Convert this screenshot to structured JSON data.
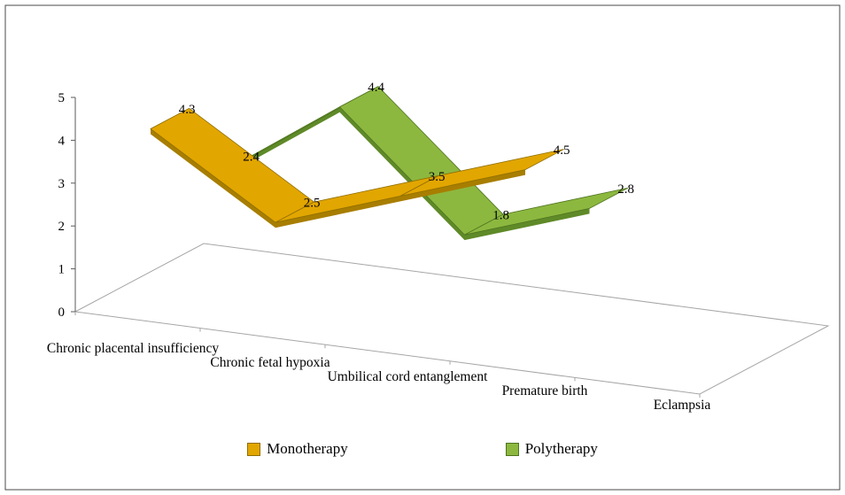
{
  "frame": {
    "background": "#ffffff",
    "border_color": "#4a4a4a"
  },
  "chart_data": {
    "type": "line",
    "style": "3d-ribbon",
    "title": "",
    "xlabel": "",
    "ylabel": "",
    "categories": [
      "Chronic placental insufficiency",
      "Chronic fetal hypoxia",
      "Umbilical cord entanglement",
      "Premature birth",
      "Eclampsia"
    ],
    "series": [
      {
        "name": "Monotherapy",
        "color": "#E2A600",
        "edge_color": "#8F6E00",
        "dark_color": "#A87E00",
        "values": [
          4.3,
          2.5,
          3.5,
          4.5,
          null
        ]
      },
      {
        "name": "Polytherapy",
        "color": "#8DB83F",
        "edge_color": "#4E741F",
        "dark_color": "#5F8A28",
        "values": [
          2.4,
          4.4,
          1.8,
          2.8,
          null
        ]
      }
    ],
    "ylim": [
      0,
      5
    ],
    "yticks": [
      0,
      1,
      2,
      3,
      4,
      5
    ],
    "legend_position": "bottom",
    "grid": false
  }
}
